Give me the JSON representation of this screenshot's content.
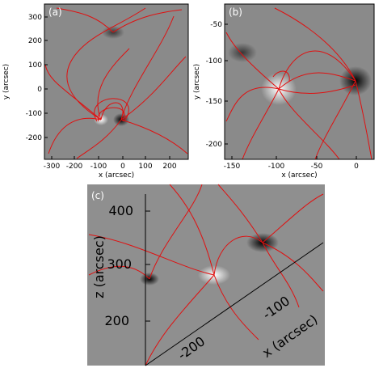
{
  "panels": [
    {
      "label": "(a)",
      "xlabel": "x (arcsec)",
      "ylabel": "y (arcsec)",
      "xticks": [
        -300,
        -200,
        -100,
        0,
        100,
        200
      ],
      "yticks": [
        300,
        200,
        100,
        0,
        -100,
        -200
      ]
    },
    {
      "label": "(b)",
      "xlabel": "x (arcsec)",
      "ylabel": "y (arcsec)",
      "xticks": [
        -150,
        -100,
        -50,
        0
      ],
      "yticks": [
        -50,
        -100,
        -150,
        -200
      ]
    },
    {
      "label": "(c)",
      "xlabel": "x (arcsec)",
      "zlabel": "z (arcsec)",
      "xticks": [
        -100,
        -200
      ],
      "zticks": [
        400,
        300,
        200
      ]
    }
  ]
}
